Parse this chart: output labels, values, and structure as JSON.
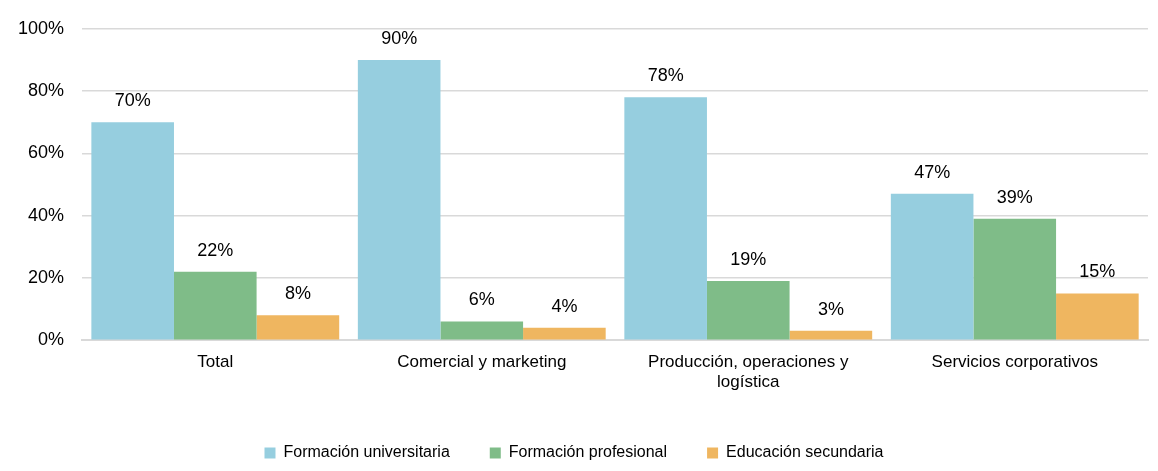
{
  "chart_data": {
    "type": "bar",
    "categories": [
      "Total",
      "Comercial y marketing",
      "Producción, operaciones y logística",
      "Servicios corporativos"
    ],
    "series": [
      {
        "name": "Formación universitaria",
        "color": "#96cedf",
        "values": [
          70,
          90,
          78,
          47
        ],
        "value_labels": [
          "70%",
          "90%",
          "78%",
          "47%"
        ]
      },
      {
        "name": "Formación profesional",
        "color": "#7fbc88",
        "values": [
          22,
          6,
          19,
          39
        ],
        "value_labels": [
          "22%",
          "6%",
          "19%",
          "39%"
        ]
      },
      {
        "name": "Educación secundaria",
        "color": "#efb660",
        "values": [
          8,
          4,
          3,
          15
        ],
        "value_labels": [
          "8%",
          "4%",
          "3%",
          "15%"
        ]
      }
    ],
    "ylim": [
      0,
      100
    ],
    "yticks": [
      {
        "value": 0,
        "label": "0%"
      },
      {
        "value": 20,
        "label": "20%"
      },
      {
        "value": 40,
        "label": "40%"
      },
      {
        "value": 60,
        "label": "60%"
      },
      {
        "value": 80,
        "label": "80%"
      },
      {
        "value": 100,
        "label": "100%"
      }
    ],
    "grid": "y",
    "legend": "bottom"
  }
}
